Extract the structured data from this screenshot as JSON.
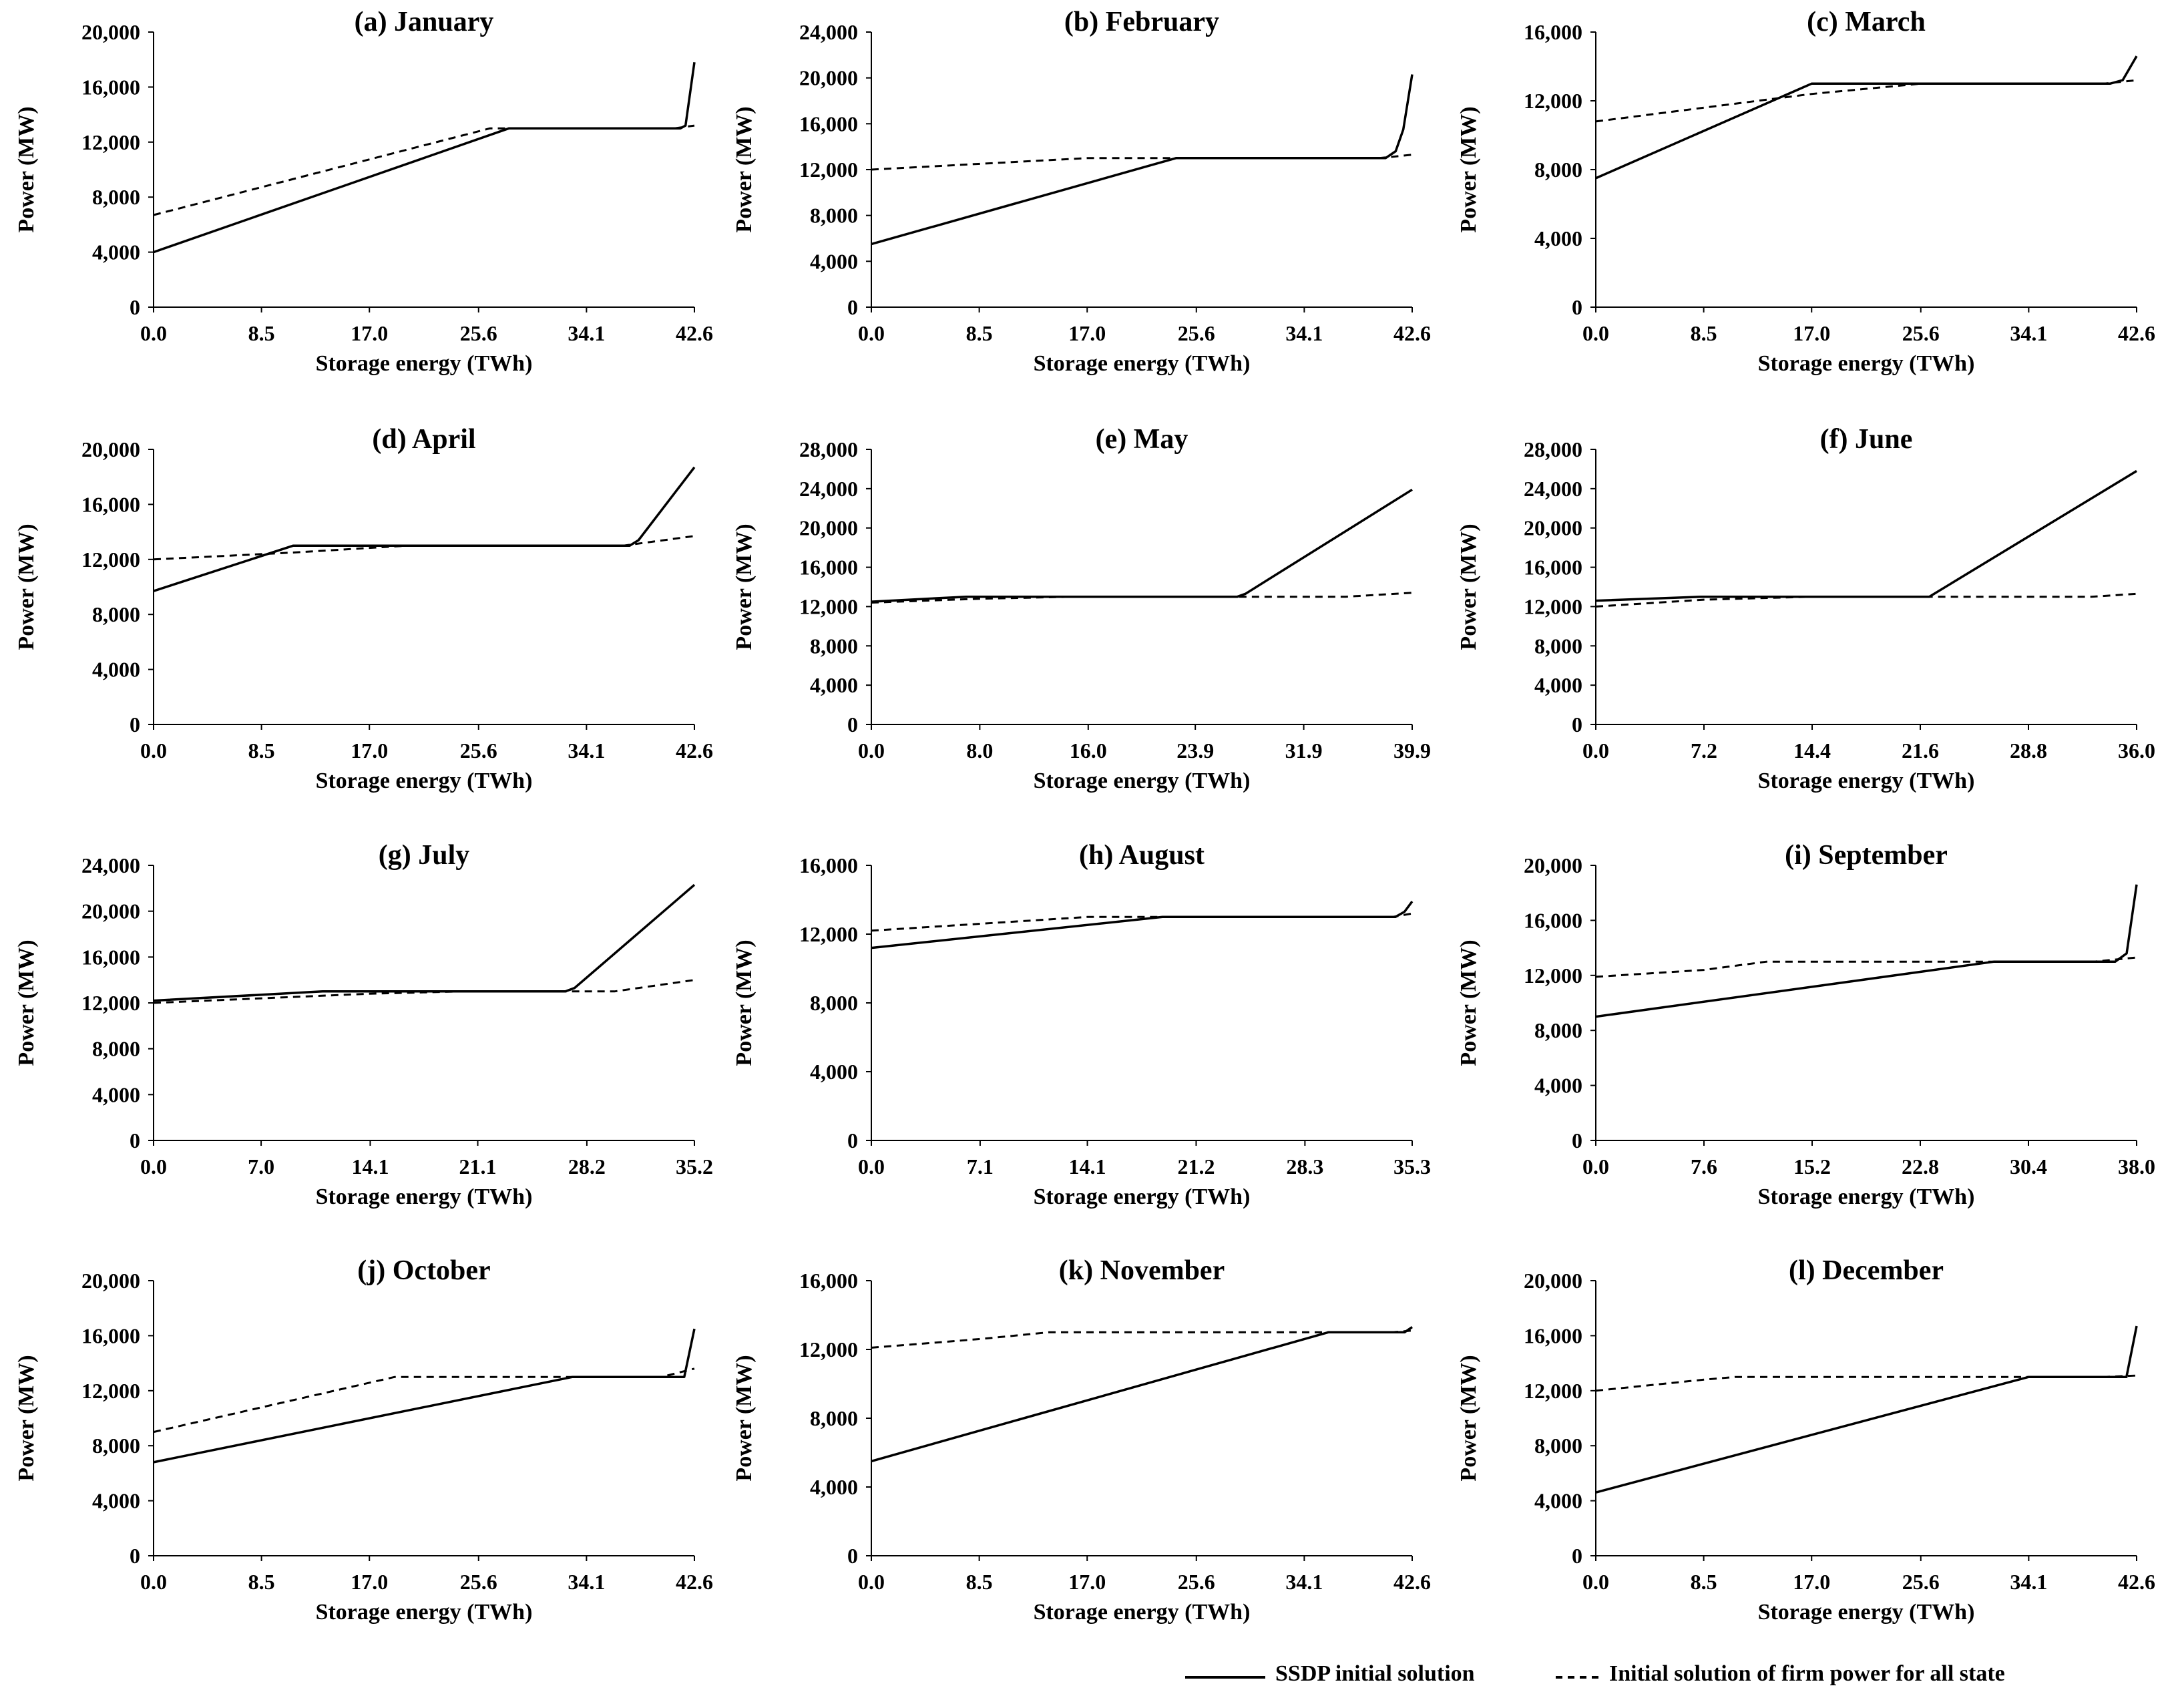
{
  "chart_data": [
    {
      "type": "line",
      "title": "(a) January",
      "xlabel": "Storage energy (TWh)",
      "ylabel": "Power (MW)",
      "ylim": [
        0,
        20000
      ],
      "yticks": [
        0,
        4000,
        8000,
        12000,
        16000,
        20000
      ],
      "xlim": [
        0,
        42.6
      ],
      "xticks": [
        0,
        8.5,
        17.0,
        25.6,
        34.1,
        42.6
      ],
      "series": [
        {
          "name": "SSDP initial solution",
          "style": "solid",
          "points": [
            [
              0,
              4000
            ],
            [
              28,
              13000
            ],
            [
              41.5,
              13000
            ],
            [
              41.9,
              13200
            ],
            [
              42.6,
              17800
            ]
          ]
        },
        {
          "name": "Initial solution of firm power for all state",
          "style": "dashed",
          "points": [
            [
              0,
              6700
            ],
            [
              26.5,
              13000
            ],
            [
              41,
              13000
            ],
            [
              42.6,
              13200
            ]
          ]
        }
      ]
    },
    {
      "type": "line",
      "title": "(b) February",
      "xlabel": "Storage energy (TWh)",
      "ylabel": "Power (MW)",
      "ylim": [
        0,
        24000
      ],
      "yticks": [
        0,
        4000,
        8000,
        12000,
        16000,
        20000,
        24000
      ],
      "xlim": [
        0,
        42.6
      ],
      "xticks": [
        0,
        8.5,
        17.0,
        25.6,
        34.1,
        42.6
      ],
      "series": [
        {
          "name": "SSDP initial solution",
          "style": "solid",
          "points": [
            [
              0,
              5500
            ],
            [
              24,
              13000
            ],
            [
              40.5,
              13000
            ],
            [
              41.3,
              13600
            ],
            [
              41.9,
              15500
            ],
            [
              42.6,
              20300
            ]
          ]
        },
        {
          "name": "Initial solution of firm power for all state",
          "style": "dashed",
          "points": [
            [
              0,
              12000
            ],
            [
              17,
              13000
            ],
            [
              40,
              13000
            ],
            [
              42.6,
              13300
            ]
          ]
        }
      ]
    },
    {
      "type": "line",
      "title": "(c) March",
      "xlabel": "Storage energy (TWh)",
      "ylabel": "Power (MW)",
      "ylim": [
        0,
        16000
      ],
      "yticks": [
        0,
        4000,
        8000,
        12000,
        16000
      ],
      "xlim": [
        0,
        42.6
      ],
      "xticks": [
        0,
        8.5,
        17.0,
        25.6,
        34.1,
        42.6
      ],
      "series": [
        {
          "name": "SSDP initial solution",
          "style": "solid",
          "points": [
            [
              0,
              7500
            ],
            [
              17,
              13000
            ],
            [
              40.5,
              13000
            ],
            [
              41.5,
              13200
            ],
            [
              42.6,
              14600
            ]
          ]
        },
        {
          "name": "Initial solution of firm power for all state",
          "style": "dashed",
          "points": [
            [
              0,
              10800
            ],
            [
              17,
              12400
            ],
            [
              25.6,
              13000
            ],
            [
              40,
              13000
            ],
            [
              42.6,
              13200
            ]
          ]
        }
      ]
    },
    {
      "type": "line",
      "title": "(d) April",
      "xlabel": "Storage energy (TWh)",
      "ylabel": "Power (MW)",
      "ylim": [
        0,
        20000
      ],
      "yticks": [
        0,
        4000,
        8000,
        12000,
        16000,
        20000
      ],
      "xlim": [
        0,
        42.6
      ],
      "xticks": [
        0,
        8.5,
        17.0,
        25.6,
        34.1,
        42.6
      ],
      "series": [
        {
          "name": "SSDP initial solution",
          "style": "solid",
          "points": [
            [
              0,
              9700
            ],
            [
              11,
              13000
            ],
            [
              37.5,
              13000
            ],
            [
              38.2,
              13400
            ],
            [
              42.6,
              18700
            ]
          ]
        },
        {
          "name": "Initial solution of firm power for all state",
          "style": "dashed",
          "points": [
            [
              0,
              12000
            ],
            [
              11,
              12500
            ],
            [
              20,
              13000
            ],
            [
              37,
              13000
            ],
            [
              42.6,
              13700
            ]
          ]
        }
      ]
    },
    {
      "type": "line",
      "title": "(e) May",
      "xlabel": "Storage energy (TWh)",
      "ylabel": "Power (MW)",
      "ylim": [
        0,
        28000
      ],
      "yticks": [
        0,
        4000,
        8000,
        12000,
        16000,
        20000,
        24000,
        28000
      ],
      "xlim": [
        0,
        39.9
      ],
      "xticks": [
        0,
        8.0,
        16.0,
        23.9,
        31.9,
        39.9
      ],
      "series": [
        {
          "name": "SSDP initial solution",
          "style": "solid",
          "points": [
            [
              0,
              12500
            ],
            [
              7,
              13000
            ],
            [
              27,
              13000
            ],
            [
              27.6,
              13300
            ],
            [
              39.9,
              23900
            ]
          ]
        },
        {
          "name": "Initial solution of firm power for all state",
          "style": "dashed",
          "points": [
            [
              0,
              12400
            ],
            [
              8,
              12800
            ],
            [
              15,
              13000
            ],
            [
              35,
              13000
            ],
            [
              39.9,
              13400
            ]
          ]
        }
      ]
    },
    {
      "type": "line",
      "title": "(f) June",
      "xlabel": "Storage energy (TWh)",
      "ylabel": "Power (MW)",
      "ylim": [
        0,
        28000
      ],
      "yticks": [
        0,
        4000,
        8000,
        12000,
        16000,
        20000,
        24000,
        28000
      ],
      "xlim": [
        0,
        36.0
      ],
      "xticks": [
        0,
        7.2,
        14.4,
        21.6,
        28.8,
        36.0
      ],
      "series": [
        {
          "name": "SSDP initial solution",
          "style": "solid",
          "points": [
            [
              0,
              12600
            ],
            [
              7,
              13000
            ],
            [
              22.2,
              13000
            ],
            [
              36,
              25800
            ]
          ]
        },
        {
          "name": "Initial solution of firm power for all state",
          "style": "dashed",
          "points": [
            [
              0,
              12000
            ],
            [
              7.2,
              12700
            ],
            [
              14.4,
              13000
            ],
            [
              33,
              13000
            ],
            [
              36,
              13300
            ]
          ]
        }
      ]
    },
    {
      "type": "line",
      "title": "(g) July",
      "xlabel": "Storage energy (TWh)",
      "ylabel": "Power (MW)",
      "ylim": [
        0,
        24000
      ],
      "yticks": [
        0,
        4000,
        8000,
        12000,
        16000,
        20000,
        24000
      ],
      "xlim": [
        0,
        35.2
      ],
      "xticks": [
        0,
        7.0,
        14.1,
        21.1,
        28.2,
        35.2
      ],
      "series": [
        {
          "name": "SSDP initial solution",
          "style": "solid",
          "points": [
            [
              0,
              12200
            ],
            [
              11,
              13000
            ],
            [
              26.8,
              13000
            ],
            [
              27.4,
              13300
            ],
            [
              35.2,
              22300
            ]
          ]
        },
        {
          "name": "Initial solution of firm power for all state",
          "style": "dashed",
          "points": [
            [
              0,
              12000
            ],
            [
              14,
              12800
            ],
            [
              20,
              13000
            ],
            [
              30,
              13000
            ],
            [
              35.2,
              14000
            ]
          ]
        }
      ]
    },
    {
      "type": "line",
      "title": "(h) August",
      "xlabel": "Storage energy (TWh)",
      "ylabel": "Power (MW)",
      "ylim": [
        0,
        16000
      ],
      "yticks": [
        0,
        4000,
        8000,
        12000,
        16000
      ],
      "xlim": [
        0,
        35.3
      ],
      "xticks": [
        0,
        7.1,
        14.1,
        21.2,
        28.3,
        35.3
      ],
      "series": [
        {
          "name": "SSDP initial solution",
          "style": "solid",
          "points": [
            [
              0,
              11200
            ],
            [
              19,
              13000
            ],
            [
              34.2,
              13000
            ],
            [
              34.8,
              13300
            ],
            [
              35.3,
              13900
            ]
          ]
        },
        {
          "name": "Initial solution of firm power for all state",
          "style": "dashed",
          "points": [
            [
              0,
              12200
            ],
            [
              7.1,
              12600
            ],
            [
              14.1,
              13000
            ],
            [
              34,
              13000
            ],
            [
              35.3,
              13200
            ]
          ]
        }
      ]
    },
    {
      "type": "line",
      "title": "(i) September",
      "xlabel": "Storage energy (TWh)",
      "ylabel": "Power (MW)",
      "ylim": [
        0,
        20000
      ],
      "yticks": [
        0,
        4000,
        8000,
        12000,
        16000,
        20000
      ],
      "xlim": [
        0,
        38.0
      ],
      "xticks": [
        0,
        7.6,
        15.2,
        22.8,
        30.4,
        38.0
      ],
      "series": [
        {
          "name": "SSDP initial solution",
          "style": "solid",
          "points": [
            [
              0,
              9000
            ],
            [
              28,
              13000
            ],
            [
              36.5,
              13000
            ],
            [
              37.3,
              13600
            ],
            [
              38,
              18600
            ]
          ]
        },
        {
          "name": "Initial solution of firm power for all state",
          "style": "dashed",
          "points": [
            [
              0,
              11900
            ],
            [
              7.6,
              12400
            ],
            [
              12,
              13000
            ],
            [
              35,
              13000
            ],
            [
              38,
              13300
            ]
          ]
        }
      ]
    },
    {
      "type": "line",
      "title": "(j) October",
      "xlabel": "Storage energy (TWh)",
      "ylabel": "Power (MW)",
      "ylim": [
        0,
        20000
      ],
      "yticks": [
        0,
        4000,
        8000,
        12000,
        16000,
        20000
      ],
      "xlim": [
        0,
        42.6
      ],
      "xticks": [
        0,
        8.5,
        17.0,
        25.6,
        34.1,
        42.6
      ],
      "series": [
        {
          "name": "SSDP initial solution",
          "style": "solid",
          "points": [
            [
              0,
              6800
            ],
            [
              33,
              13000
            ],
            [
              41.8,
              13000
            ],
            [
              42.6,
              16500
            ]
          ]
        },
        {
          "name": "Initial solution of firm power for all state",
          "style": "dashed",
          "points": [
            [
              0,
              9000
            ],
            [
              19,
              13000
            ],
            [
              40,
              13000
            ],
            [
              42.6,
              13600
            ]
          ]
        }
      ]
    },
    {
      "type": "line",
      "title": "(k) November",
      "xlabel": "Storage energy (TWh)",
      "ylabel": "Power (MW)",
      "ylim": [
        0,
        16000
      ],
      "yticks": [
        0,
        4000,
        8000,
        12000,
        16000
      ],
      "xlim": [
        0,
        42.6
      ],
      "xticks": [
        0,
        8.5,
        17.0,
        25.6,
        34.1,
        42.6
      ],
      "series": [
        {
          "name": "SSDP initial solution",
          "style": "solid",
          "points": [
            [
              0,
              5500
            ],
            [
              36,
              13000
            ],
            [
              42,
              13000
            ],
            [
              42.6,
              13300
            ]
          ]
        },
        {
          "name": "Initial solution of firm power for all state",
          "style": "dashed",
          "points": [
            [
              0,
              12100
            ],
            [
              8.5,
              12600
            ],
            [
              14,
              13000
            ],
            [
              41,
              13000
            ],
            [
              42.6,
              13100
            ]
          ]
        }
      ]
    },
    {
      "type": "line",
      "title": "(l) December",
      "xlabel": "Storage energy (TWh)",
      "ylabel": "Power (MW)",
      "ylim": [
        0,
        20000
      ],
      "yticks": [
        0,
        4000,
        8000,
        12000,
        16000,
        20000
      ],
      "xlim": [
        0,
        42.6
      ],
      "xticks": [
        0,
        8.5,
        17.0,
        25.6,
        34.1,
        42.6
      ],
      "series": [
        {
          "name": "SSDP initial solution",
          "style": "solid",
          "points": [
            [
              0,
              4600
            ],
            [
              34.1,
              13000
            ],
            [
              41.8,
              13000
            ],
            [
              42.6,
              16700
            ]
          ]
        },
        {
          "name": "Initial solution of firm power for all state",
          "style": "dashed",
          "points": [
            [
              0,
              12000
            ],
            [
              8.5,
              12800
            ],
            [
              11,
              13000
            ],
            [
              40,
              13000
            ],
            [
              42.6,
              13100
            ]
          ]
        }
      ]
    }
  ],
  "legend": [
    {
      "label": "SSDP initial solution",
      "style": "solid"
    },
    {
      "label": "Initial solution of firm power for all state",
      "style": "dashed"
    }
  ]
}
